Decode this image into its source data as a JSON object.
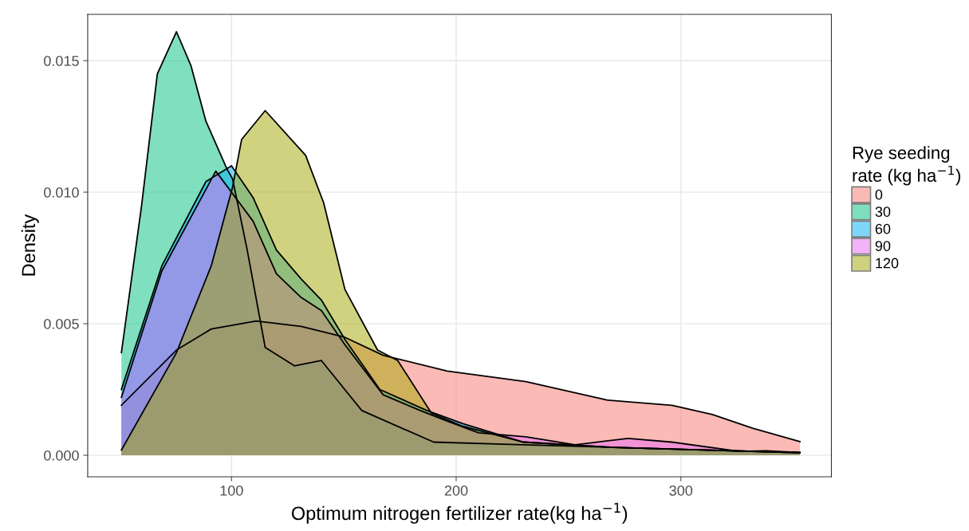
{
  "chart_data": {
    "type": "area",
    "xlabel": "Optimum nitrogen fertilizer rate(kg ha$^{−1}$)",
    "ylabel": "Density",
    "legend_title": "Rye seeding\nrate (kg ha$^{−1}$)",
    "legend": "right",
    "grid": true,
    "xlim": [
      36,
      367
    ],
    "ylim": [
      -0.00082,
      0.01676
    ],
    "xticks": [
      100,
      200,
      300
    ],
    "yticks": [
      {
        "value": 0,
        "label": "0.000"
      },
      {
        "value": 0.005,
        "label": "0.005"
      },
      {
        "value": 0.01,
        "label": "0.010"
      },
      {
        "value": 0.015,
        "label": "0.015"
      }
    ],
    "series": [
      {
        "name": "0",
        "color": "#f8766d",
        "x": [
          51,
          75.5,
          91,
          111,
          131,
          150,
          167.5,
          196,
          231,
          249,
          267,
          296,
          314,
          332,
          353
        ],
        "values": [
          0.0019,
          0.004,
          0.0048,
          0.0051,
          0.0049,
          0.0045,
          0.0038,
          0.0032,
          0.0028,
          0.00245,
          0.0021,
          0.0019,
          0.00155,
          0.00103,
          0.00052
        ]
      },
      {
        "name": "30",
        "color": "#00bf7d",
        "x": [
          51,
          60,
          67,
          75.5,
          82,
          88.6,
          97.9,
          100.5,
          107,
          115,
          128,
          140,
          158,
          190,
          230,
          270,
          310,
          353
        ],
        "values": [
          0.0039,
          0.0095,
          0.0145,
          0.0161,
          0.0148,
          0.0127,
          0.0109,
          0.0105,
          0.0078,
          0.0041,
          0.0034,
          0.0036,
          0.0017,
          0.0005,
          0.0004,
          0.0003,
          0.0002,
          0.0001
        ]
      },
      {
        "name": "60",
        "color": "#00b0f6",
        "x": [
          51,
          69,
          88.6,
          100,
          109.6,
          120,
          131,
          140,
          150.5,
          166,
          187,
          203,
          230,
          270,
          310,
          353
        ],
        "values": [
          0.0025,
          0.0072,
          0.0104,
          0.011,
          0.0098,
          0.0078,
          0.0067,
          0.0059,
          0.0044,
          0.0025,
          0.0017,
          0.0012,
          0.0005,
          0.0003,
          0.0002,
          0.0001
        ]
      },
      {
        "name": "90",
        "color": "#e76bf3",
        "x": [
          51,
          69,
          93,
          109.6,
          120,
          131,
          140,
          150.5,
          167.5,
          184,
          196,
          210,
          231,
          253,
          276.5,
          296,
          326,
          338,
          353
        ],
        "values": [
          0.0022,
          0.007,
          0.0108,
          0.0089,
          0.0069,
          0.006,
          0.0055,
          0.0042,
          0.0023,
          0.0017,
          0.0013,
          0.00085,
          0.0007,
          0.0004,
          0.00064,
          0.0005,
          0.00015,
          0.00017,
          0.0001
        ]
      },
      {
        "name": "120",
        "color": "#a3a500",
        "x": [
          51,
          75.5,
          91,
          100.5,
          104.5,
          115,
          133,
          141,
          150.5,
          165,
          174,
          189,
          203,
          230,
          270,
          310,
          353
        ],
        "values": [
          0.0002,
          0.0039,
          0.0072,
          0.0102,
          0.012,
          0.0131,
          0.0114,
          0.0096,
          0.0063,
          0.004,
          0.0036,
          0.0016,
          0.0011,
          0.0005,
          0.0003,
          0.0002,
          0.0001
        ]
      }
    ]
  }
}
